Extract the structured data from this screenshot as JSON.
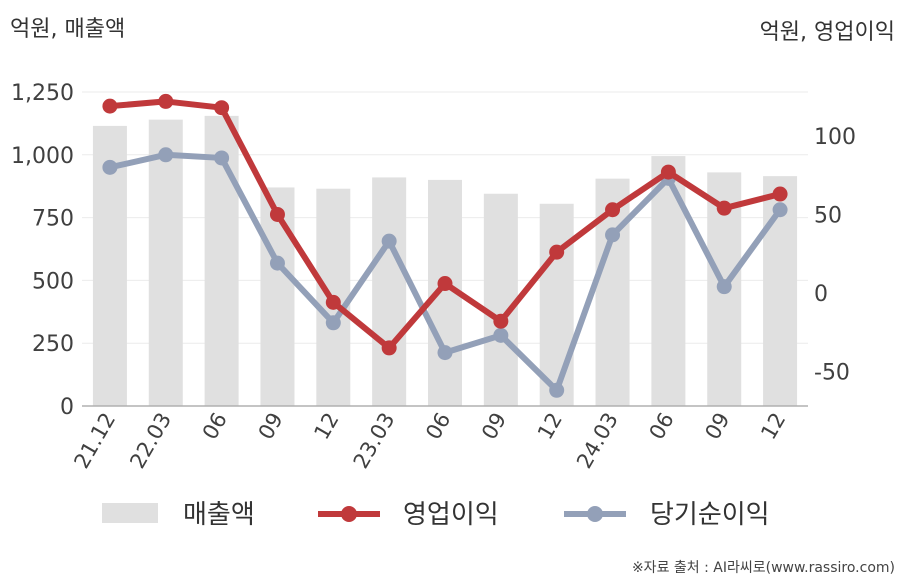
{
  "chart_data": {
    "type": "bar+line",
    "left_unit": "억원, 매출액",
    "right_unit": "억원, 영업이익",
    "categories": [
      "21.12",
      "22.03",
      "06",
      "09",
      "12",
      "23.03",
      "06",
      "09",
      "12",
      "24.03",
      "06",
      "09",
      "12"
    ],
    "left_ticks": [
      "0",
      "250",
      "500",
      "750",
      "1,000",
      "1,250"
    ],
    "right_ticks": [
      "-50",
      "0",
      "50",
      "100"
    ],
    "ylim_left": [
      0,
      1250
    ],
    "ylim_right": [
      -72,
      128
    ],
    "grid": true,
    "legend_position": "bottom",
    "colors": {
      "bar": "#e0e0e0",
      "op": "#c0393b",
      "net": "#93a0b8"
    },
    "series": [
      {
        "name": "매출액",
        "type": "bar",
        "axis": "left",
        "values": [
          1115,
          1140,
          1155,
          870,
          865,
          910,
          900,
          845,
          805,
          905,
          995,
          930,
          915
        ]
      },
      {
        "name": "영업이익",
        "type": "line",
        "axis": "right",
        "values": [
          119,
          122,
          118,
          50,
          -6,
          -35,
          6,
          -18,
          26,
          53,
          77,
          54,
          63
        ]
      },
      {
        "name": "당기순이익",
        "type": "line",
        "axis": "right",
        "values": [
          80,
          88,
          86,
          19,
          -19,
          33,
          -38,
          -27,
          -62,
          37,
          73,
          4,
          53
        ]
      }
    ]
  },
  "source_text": "※자료 출처 : AI라씨로(www.rassiro.com)"
}
